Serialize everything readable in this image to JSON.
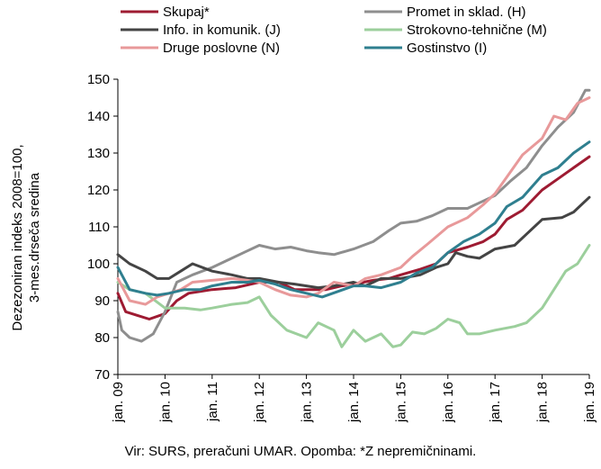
{
  "chart_data": {
    "type": "line",
    "ylabel_lines": [
      "Dezezoniran indeks 2008=100,",
      "3-mes.drseča sredina"
    ],
    "xlabel": "",
    "ylim": [
      70,
      150
    ],
    "y_ticks": [
      70,
      80,
      90,
      100,
      110,
      120,
      130,
      140,
      150
    ],
    "x_range": [
      "2009-01",
      "2019-01"
    ],
    "x_ticks": [
      "jan. 09",
      "jan. 10",
      "jan. 11",
      "jan. 12",
      "jan. 13",
      "jan. 14",
      "jan. 15",
      "jan. 16",
      "jan. 17",
      "jan. 18",
      "jan. 19"
    ],
    "x_tick_dates": [
      "2009-01",
      "2010-01",
      "2011-01",
      "2012-01",
      "2013-01",
      "2014-01",
      "2015-01",
      "2016-01",
      "2017-01",
      "2018-01",
      "2019-01"
    ],
    "grid": false,
    "legend_position": "top",
    "series": [
      {
        "name": "Skupaj*",
        "color": "#9e1b32",
        "points": [
          [
            "2009-01",
            92
          ],
          [
            "2009-03",
            87
          ],
          [
            "2009-06",
            86
          ],
          [
            "2009-09",
            85
          ],
          [
            "2010-01",
            86.5
          ],
          [
            "2010-04",
            90
          ],
          [
            "2010-07",
            92
          ],
          [
            "2011-01",
            93
          ],
          [
            "2011-07",
            93.5
          ],
          [
            "2012-01",
            95
          ],
          [
            "2012-06",
            95
          ],
          [
            "2012-10",
            93
          ],
          [
            "2013-01",
            93
          ],
          [
            "2013-06",
            93
          ],
          [
            "2013-10",
            94
          ],
          [
            "2014-01",
            94.5
          ],
          [
            "2014-06",
            95.5
          ],
          [
            "2014-10",
            96
          ],
          [
            "2015-01",
            97
          ],
          [
            "2015-06",
            98.5
          ],
          [
            "2015-10",
            100
          ],
          [
            "2016-01",
            103
          ],
          [
            "2016-06",
            104.5
          ],
          [
            "2016-10",
            106
          ],
          [
            "2017-01",
            108
          ],
          [
            "2017-04",
            112
          ],
          [
            "2017-08",
            114.5
          ],
          [
            "2018-01",
            120
          ],
          [
            "2018-05",
            123
          ],
          [
            "2018-09",
            126
          ],
          [
            "2019-01",
            129
          ]
        ]
      },
      {
        "name": "Promet in sklad. (H)",
        "color": "#8e8e8e",
        "points": [
          [
            "2009-01",
            87
          ],
          [
            "2009-02",
            82
          ],
          [
            "2009-04",
            80
          ],
          [
            "2009-07",
            79
          ],
          [
            "2009-10",
            81
          ],
          [
            "2010-01",
            87
          ],
          [
            "2010-04",
            95
          ],
          [
            "2010-08",
            97
          ],
          [
            "2011-01",
            99
          ],
          [
            "2011-05",
            101
          ],
          [
            "2011-09",
            103
          ],
          [
            "2012-01",
            105
          ],
          [
            "2012-05",
            104
          ],
          [
            "2012-09",
            104.5
          ],
          [
            "2013-01",
            103.5
          ],
          [
            "2013-04",
            103
          ],
          [
            "2013-08",
            102.5
          ],
          [
            "2014-01",
            104
          ],
          [
            "2014-06",
            106
          ],
          [
            "2014-10",
            109
          ],
          [
            "2015-01",
            111
          ],
          [
            "2015-05",
            111.5
          ],
          [
            "2015-09",
            113
          ],
          [
            "2016-01",
            115
          ],
          [
            "2016-06",
            115
          ],
          [
            "2016-10",
            117
          ],
          [
            "2017-01",
            118.5
          ],
          [
            "2017-05",
            122.5
          ],
          [
            "2017-09",
            126
          ],
          [
            "2018-01",
            132
          ],
          [
            "2018-05",
            137
          ],
          [
            "2018-09",
            141
          ],
          [
            "2018-12",
            147
          ],
          [
            "2019-01",
            147
          ]
        ]
      },
      {
        "name": "Info. in komunik. (J)",
        "color": "#444444",
        "points": [
          [
            "2009-01",
            102.5
          ],
          [
            "2009-04",
            100
          ],
          [
            "2009-08",
            98
          ],
          [
            "2009-11",
            96
          ],
          [
            "2010-02",
            96
          ],
          [
            "2010-05",
            98
          ],
          [
            "2010-08",
            100
          ],
          [
            "2011-01",
            98
          ],
          [
            "2011-06",
            97
          ],
          [
            "2011-10",
            96
          ],
          [
            "2012-01",
            96
          ],
          [
            "2012-06",
            95
          ],
          [
            "2012-10",
            94.5
          ],
          [
            "2013-01",
            94
          ],
          [
            "2013-04",
            93.5
          ],
          [
            "2013-08",
            94
          ],
          [
            "2014-01",
            95
          ],
          [
            "2014-04",
            94
          ],
          [
            "2014-08",
            96
          ],
          [
            "2015-01",
            96
          ],
          [
            "2015-06",
            97
          ],
          [
            "2015-10",
            99
          ],
          [
            "2016-01",
            100
          ],
          [
            "2016-03",
            103
          ],
          [
            "2016-06",
            102
          ],
          [
            "2016-09",
            101.5
          ],
          [
            "2017-01",
            104
          ],
          [
            "2017-06",
            105
          ],
          [
            "2017-09",
            108
          ],
          [
            "2018-01",
            112
          ],
          [
            "2018-06",
            112.5
          ],
          [
            "2018-09",
            114
          ],
          [
            "2019-01",
            118
          ]
        ]
      },
      {
        "name": "Strokovno-tehnične (M)",
        "color": "#9ccf9c",
        "points": [
          [
            "2009-01",
            95
          ],
          [
            "2009-04",
            93
          ],
          [
            "2009-08",
            92
          ],
          [
            "2010-01",
            88
          ],
          [
            "2010-06",
            88
          ],
          [
            "2010-10",
            87.5
          ],
          [
            "2011-01",
            88
          ],
          [
            "2011-06",
            89
          ],
          [
            "2011-10",
            89.5
          ],
          [
            "2012-01",
            91
          ],
          [
            "2012-04",
            86
          ],
          [
            "2012-08",
            82
          ],
          [
            "2013-01",
            80
          ],
          [
            "2013-04",
            84
          ],
          [
            "2013-08",
            82
          ],
          [
            "2013-10",
            77.5
          ],
          [
            "2014-01",
            82
          ],
          [
            "2014-04",
            79
          ],
          [
            "2014-08",
            81
          ],
          [
            "2014-11",
            77.5
          ],
          [
            "2015-01",
            78
          ],
          [
            "2015-04",
            81.5
          ],
          [
            "2015-07",
            81
          ],
          [
            "2015-10",
            82.5
          ],
          [
            "2016-01",
            85
          ],
          [
            "2016-04",
            84
          ],
          [
            "2016-06",
            81
          ],
          [
            "2016-09",
            81
          ],
          [
            "2017-01",
            82
          ],
          [
            "2017-06",
            83
          ],
          [
            "2017-09",
            84
          ],
          [
            "2018-01",
            88
          ],
          [
            "2018-04",
            93
          ],
          [
            "2018-07",
            98
          ],
          [
            "2018-10",
            100
          ],
          [
            "2019-01",
            105
          ]
        ]
      },
      {
        "name": "Druge poslovne (N)",
        "color": "#e8999a",
        "points": [
          [
            "2009-01",
            96
          ],
          [
            "2009-04",
            90
          ],
          [
            "2009-08",
            89
          ],
          [
            "2009-11",
            91
          ],
          [
            "2010-02",
            92
          ],
          [
            "2010-05",
            93
          ],
          [
            "2010-08",
            95
          ],
          [
            "2011-01",
            95.5
          ],
          [
            "2011-06",
            96
          ],
          [
            "2011-10",
            95.5
          ],
          [
            "2012-01",
            95
          ],
          [
            "2012-05",
            93
          ],
          [
            "2012-09",
            91.5
          ],
          [
            "2013-01",
            91
          ],
          [
            "2013-04",
            92
          ],
          [
            "2013-08",
            95
          ],
          [
            "2014-01",
            94
          ],
          [
            "2014-04",
            96
          ],
          [
            "2014-08",
            97
          ],
          [
            "2015-01",
            99
          ],
          [
            "2015-04",
            102
          ],
          [
            "2015-08",
            105.5
          ],
          [
            "2016-01",
            110
          ],
          [
            "2016-06",
            112.5
          ],
          [
            "2016-10",
            116
          ],
          [
            "2017-01",
            119
          ],
          [
            "2017-05",
            125
          ],
          [
            "2017-08",
            129.5
          ],
          [
            "2018-01",
            134
          ],
          [
            "2018-04",
            140
          ],
          [
            "2018-07",
            139
          ],
          [
            "2018-10",
            143.5
          ],
          [
            "2019-01",
            145
          ]
        ]
      },
      {
        "name": "Gostinstvo (I)",
        "color": "#2f7f8f",
        "points": [
          [
            "2009-01",
            99
          ],
          [
            "2009-04",
            93
          ],
          [
            "2009-08",
            92
          ],
          [
            "2009-11",
            91.5
          ],
          [
            "2010-02",
            92
          ],
          [
            "2010-06",
            93
          ],
          [
            "2010-10",
            93
          ],
          [
            "2011-01",
            94
          ],
          [
            "2011-06",
            95
          ],
          [
            "2011-10",
            95
          ],
          [
            "2012-01",
            95.5
          ],
          [
            "2012-05",
            94.5
          ],
          [
            "2012-09",
            93
          ],
          [
            "2013-01",
            92
          ],
          [
            "2013-05",
            91
          ],
          [
            "2013-09",
            92.5
          ],
          [
            "2014-01",
            94
          ],
          [
            "2014-04",
            94
          ],
          [
            "2014-08",
            93.5
          ],
          [
            "2015-01",
            95
          ],
          [
            "2015-05",
            97.5
          ],
          [
            "2015-09",
            99
          ],
          [
            "2016-01",
            103
          ],
          [
            "2016-05",
            106
          ],
          [
            "2016-09",
            108
          ],
          [
            "2017-01",
            111
          ],
          [
            "2017-04",
            115.5
          ],
          [
            "2017-08",
            118
          ],
          [
            "2018-01",
            124
          ],
          [
            "2018-05",
            126
          ],
          [
            "2018-09",
            130
          ],
          [
            "2019-01",
            133
          ]
        ]
      }
    ]
  },
  "footer": {
    "source_note": "Vir: SURS, preračuni UMAR. Opomba: *Z nepremičninami."
  }
}
